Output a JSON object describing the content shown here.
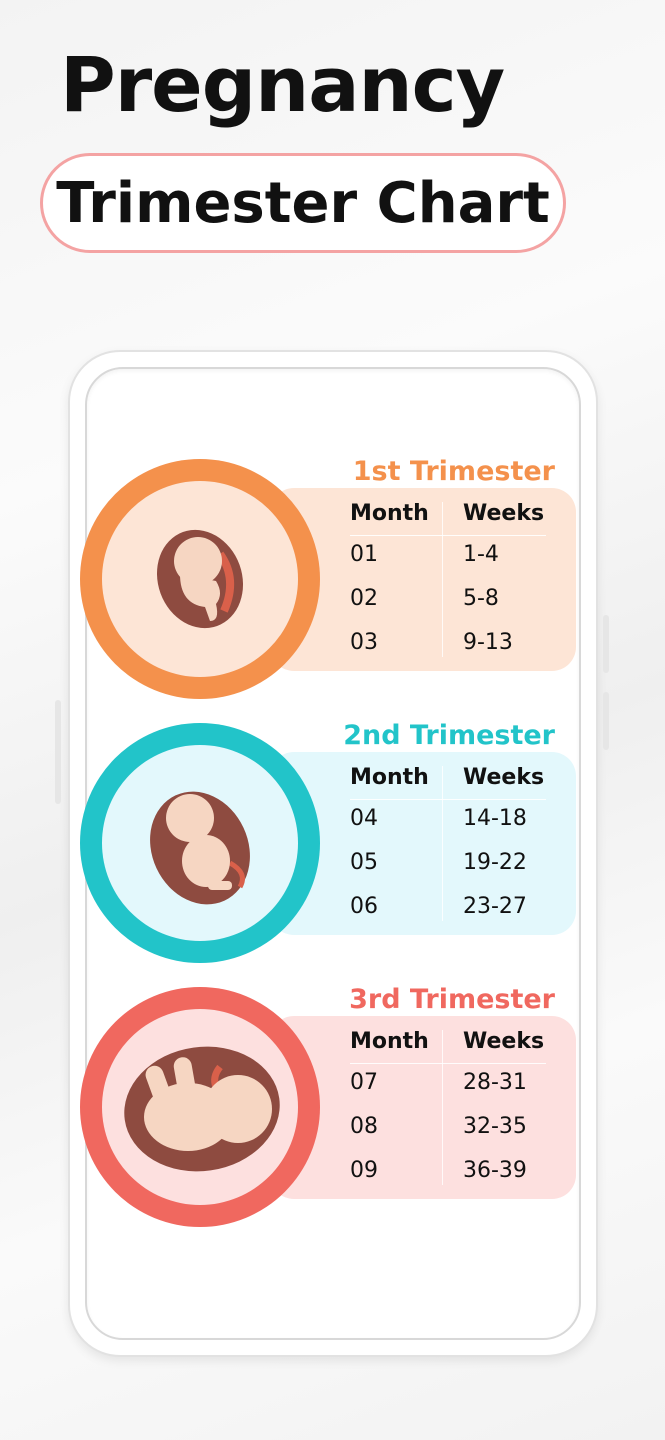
{
  "header": {
    "title": "Pregnancy",
    "subtitle": "Trimester Chart"
  },
  "trimesters": [
    {
      "title": "1st Trimester",
      "color": "#f4914c",
      "panel_color": "#fde5d6",
      "month_header": "Month",
      "weeks_header": "Weeks",
      "icon": "fetus-early-icon",
      "rows": [
        {
          "month": "01",
          "weeks": "1-4"
        },
        {
          "month": "02",
          "weeks": "5-8"
        },
        {
          "month": "03",
          "weeks": "9-13"
        }
      ]
    },
    {
      "title": "2nd Trimester",
      "color": "#22c4c9",
      "panel_color": "#e3f8fc",
      "month_header": "Month",
      "weeks_header": "Weeks",
      "icon": "fetus-mid-icon",
      "rows": [
        {
          "month": "04",
          "weeks": "14-18"
        },
        {
          "month": "05",
          "weeks": "19-22"
        },
        {
          "month": "06",
          "weeks": "23-27"
        }
      ]
    },
    {
      "title": "3rd Trimester",
      "color": "#f0685f",
      "panel_color": "#fde0df",
      "month_header": "Month",
      "weeks_header": "Weeks",
      "icon": "fetus-late-icon",
      "rows": [
        {
          "month": "07",
          "weeks": "28-31"
        },
        {
          "month": "08",
          "weeks": "32-35"
        },
        {
          "month": "09",
          "weeks": "36-39"
        }
      ]
    }
  ]
}
